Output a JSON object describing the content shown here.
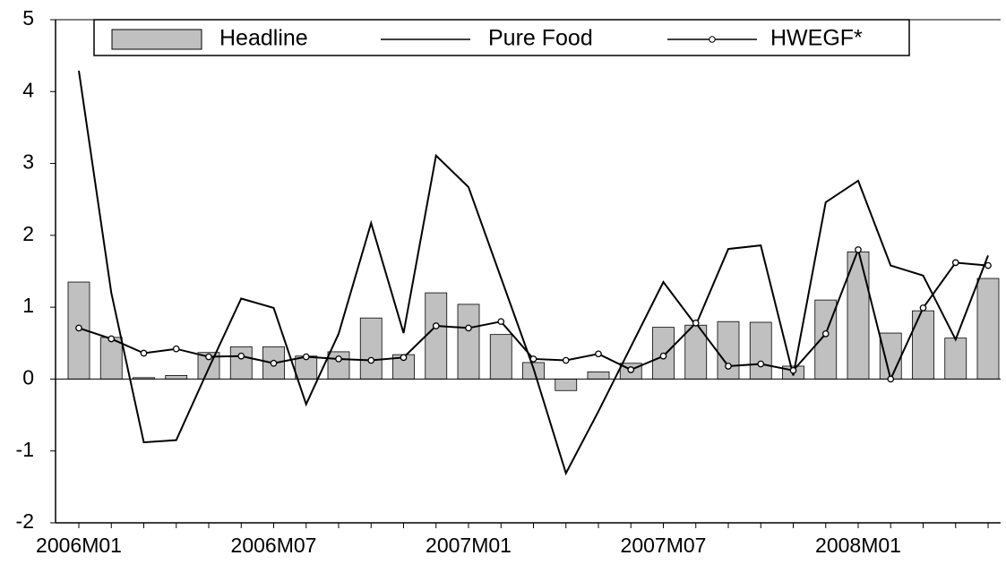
{
  "chart_data": {
    "type": "bar",
    "categories": [
      "2006M01",
      null,
      null,
      null,
      null,
      null,
      "2006M07",
      null,
      null,
      null,
      null,
      null,
      "2007M01",
      null,
      null,
      null,
      null,
      null,
      "2007M07",
      null,
      null,
      null,
      null,
      null,
      "2008M01",
      null,
      null,
      null,
      null
    ],
    "series": [
      {
        "name": "Headline",
        "type": "bar",
        "color": "#c0c0c0",
        "values": [
          1.35,
          0.58,
          0.02,
          0.05,
          0.37,
          0.45,
          0.45,
          0.32,
          0.38,
          0.85,
          0.34,
          1.2,
          1.04,
          0.62,
          0.23,
          -0.16,
          0.1,
          0.22,
          0.72,
          0.75,
          0.8,
          0.79,
          0.18,
          1.1,
          1.77,
          0.64,
          0.95,
          0.57,
          1.4
        ]
      },
      {
        "name": "Pure Food",
        "type": "line",
        "color": "#000000",
        "values": [
          4.29,
          1.2,
          -0.88,
          -0.85,
          0.15,
          1.12,
          0.99,
          -0.35,
          0.63,
          2.17,
          0.64,
          3.11,
          2.67,
          1.41,
          0.15,
          -1.31,
          -0.45,
          0.45,
          1.35,
          0.75,
          1.81,
          1.86,
          0.05,
          2.46,
          2.76,
          1.58,
          1.44,
          0.55,
          1.72
        ]
      },
      {
        "name": "HWEGF*",
        "type": "line",
        "marker": "circle",
        "color": "#000000",
        "values": [
          0.71,
          0.56,
          0.36,
          0.42,
          0.31,
          0.32,
          0.22,
          0.31,
          0.28,
          0.26,
          0.3,
          0.74,
          0.71,
          0.8,
          0.28,
          0.26,
          0.35,
          0.13,
          0.32,
          0.78,
          0.18,
          0.21,
          0.12,
          0.63,
          1.8,
          0.0,
          0.99,
          1.62,
          1.58
        ]
      }
    ],
    "ylim": [
      -2,
      5
    ],
    "yticks": [
      -2,
      -1,
      0,
      1,
      2,
      3,
      4,
      5
    ],
    "legend": "top"
  }
}
